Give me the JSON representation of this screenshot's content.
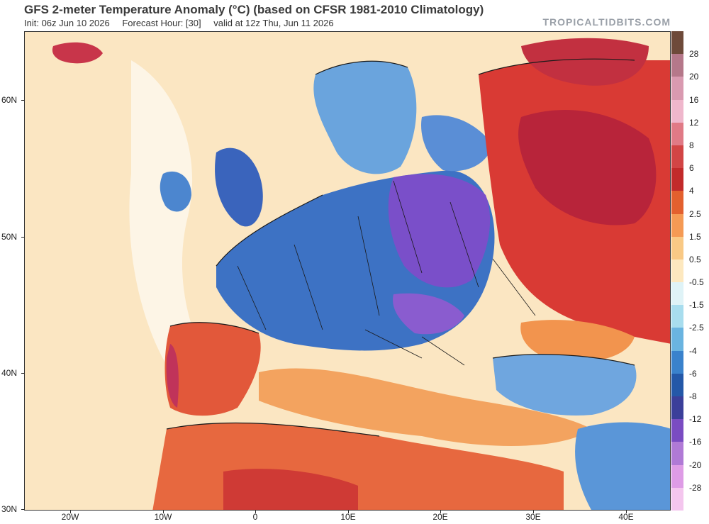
{
  "header": {
    "title": "GFS 2-meter Temperature Anomaly (°C) (based on CFSR 1981-2010 Climatology)",
    "init": "Init: 06z Jun 10 2026",
    "forecast_hour": "Forecast Hour: [30]",
    "valid": "valid at 12z Thu, Jun 11 2026",
    "brand": "TROPICALTIDBITS.COM"
  },
  "axes": {
    "lat_labels": [
      "60N",
      "50N",
      "40N",
      "30N"
    ],
    "lon_labels": [
      "20W",
      "10W",
      "0",
      "10E",
      "20E",
      "30E",
      "40E"
    ]
  },
  "colorbar": {
    "labels": [
      "28",
      "20",
      "16",
      "12",
      "8",
      "6",
      "4",
      "2.5",
      "1.5",
      "0.5",
      "-0.5",
      "-1.5",
      "-2.5",
      "-4",
      "-6",
      "-8",
      "-12",
      "-16",
      "-20",
      "-28"
    ],
    "colors": [
      "#6e4a3a",
      "#b5788a",
      "#d99ab0",
      "#efb7cc",
      "#e07a86",
      "#d24545",
      "#c22a2a",
      "#e3602e",
      "#f59a54",
      "#f9c985",
      "#fde8bf",
      "#dff3f7",
      "#a8ddee",
      "#6ab4e0",
      "#3a82cc",
      "#2458a8",
      "#3b3f9a",
      "#7a4cc2",
      "#b07ad6",
      "#de9ce6",
      "#f4c6ee"
    ]
  },
  "map_palette": {
    "ocean": "#fbe6c2",
    "warm": "#e2583a",
    "hot": "#b8243a",
    "cool": "#3d72c4",
    "cold": "#7a4fc9",
    "border": "#1a1a1a"
  }
}
